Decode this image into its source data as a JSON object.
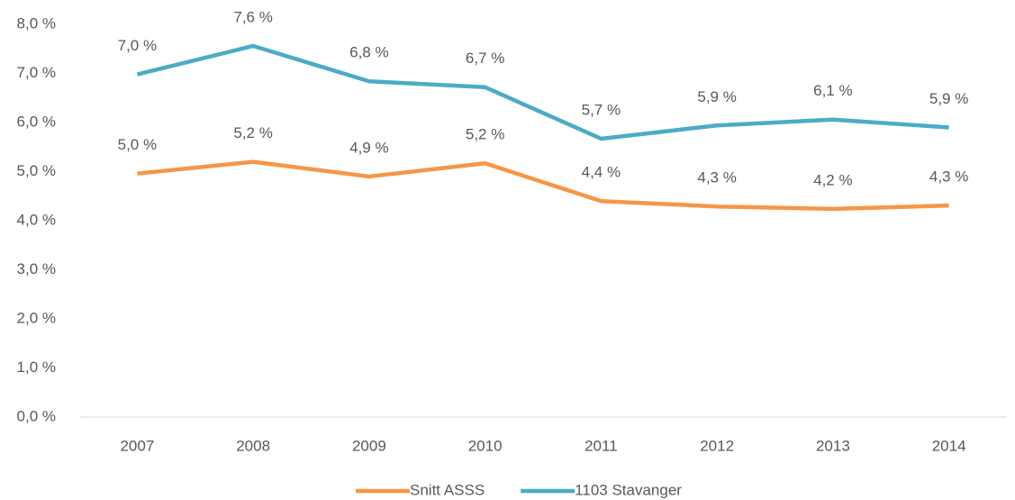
{
  "chart_data": {
    "type": "line",
    "categories": [
      "2007",
      "2008",
      "2009",
      "2010",
      "2011",
      "2012",
      "2013",
      "2014"
    ],
    "series": [
      {
        "name": "Snitt ASSS",
        "color": "#f79646",
        "values": [
          4.96,
          5.2,
          4.9,
          5.17,
          4.4,
          4.29,
          4.24,
          4.31
        ],
        "value_labels": [
          "5,0 %",
          "5,2 %",
          "4,9 %",
          "5,2 %",
          "4,4 %",
          "4,3 %",
          "4,2 %",
          "4,3 %"
        ]
      },
      {
        "name": "1103 Stavanger",
        "color": "#4bacc6",
        "values": [
          6.98,
          7.56,
          6.84,
          6.72,
          5.67,
          5.94,
          6.06,
          5.9
        ],
        "value_labels": [
          "7,0 %",
          "7,6 %",
          "6,8 %",
          "6,7 %",
          "5,7 %",
          "5,9 %",
          "6,1 %",
          "5,9 %"
        ]
      }
    ],
    "ylim": [
      0,
      8
    ],
    "yticks": [
      {
        "value": 0,
        "label": "0,0 %"
      },
      {
        "value": 1,
        "label": "1,0 %"
      },
      {
        "value": 2,
        "label": "2,0 %"
      },
      {
        "value": 3,
        "label": "3,0 %"
      },
      {
        "value": 4,
        "label": "4,0 %"
      },
      {
        "value": 5,
        "label": "5,0 %"
      },
      {
        "value": 6,
        "label": "6,0 %"
      },
      {
        "value": 7,
        "label": "7,0 %"
      },
      {
        "value": 8,
        "label": "8,0 %"
      }
    ],
    "grid": false,
    "legend": "bottom"
  }
}
